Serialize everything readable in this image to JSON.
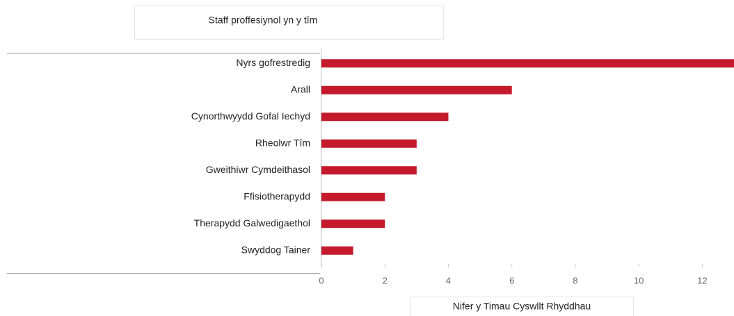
{
  "chart_data": {
    "type": "bar",
    "orientation": "horizontal",
    "title": "Staff proffesiynol yn y tîm",
    "x_label": "Nifer y Timau Cyswllt Rhyddhau",
    "categories": [
      "Nyrs gofrestredig",
      "Arall",
      "Cynorthwyydd Gofal Iechyd",
      "Rheolwr Tîm",
      "Gweithiwr Cymdeithasol",
      "Ffisiotherapydd",
      "Therapydd Galwedigaethol",
      "Swyddog Tainer"
    ],
    "values": [
      13,
      6,
      4,
      3,
      3,
      2,
      2,
      1
    ],
    "color": "#c41a2b",
    "xlim": [
      0,
      13
    ],
    "xticks": [
      0,
      2,
      4,
      6,
      8,
      10,
      12
    ]
  }
}
